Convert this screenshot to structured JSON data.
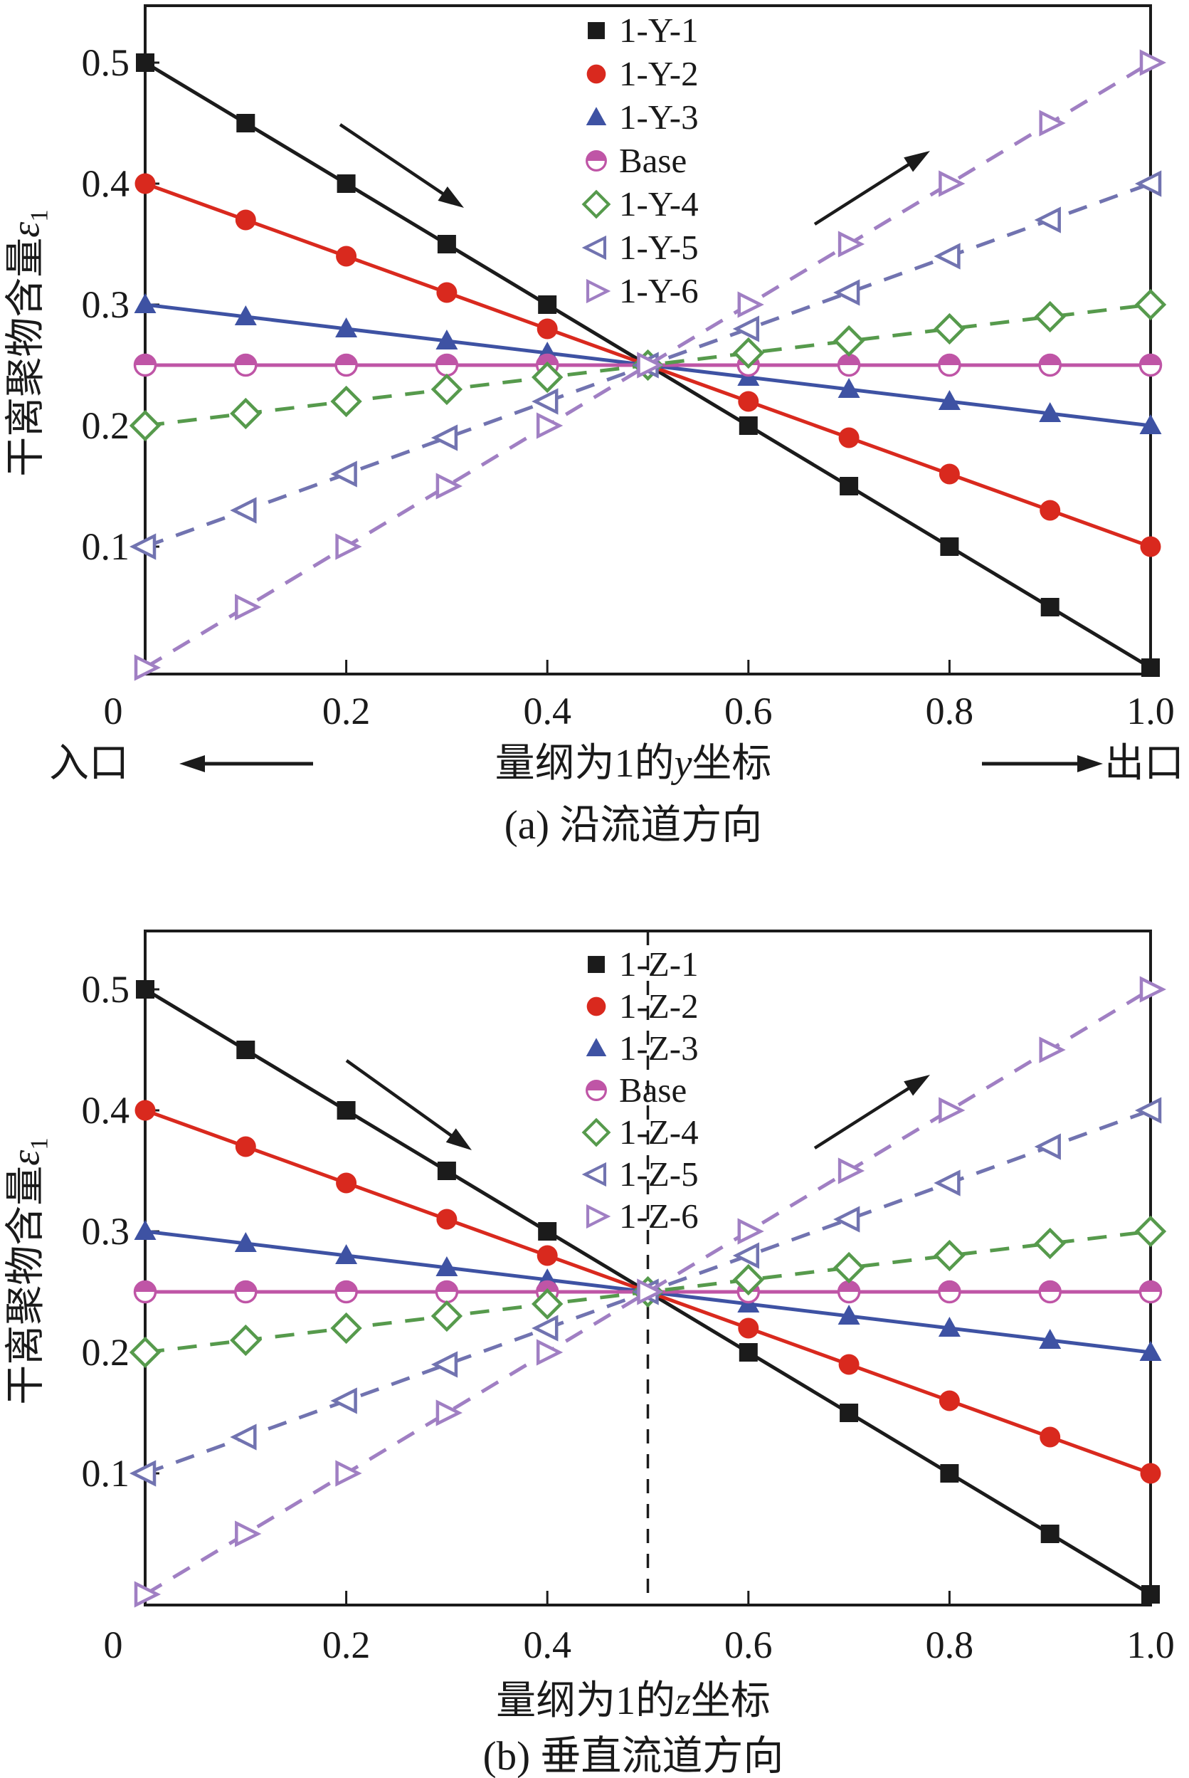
{
  "panels": [
    {
      "caption": "(a) 沿流道方向",
      "xlabel": {
        "prefix": "量纲为1的",
        "var": "y",
        "suffix": "坐标"
      },
      "ylabel": {
        "text": "干离聚物含量",
        "symbol": "ε",
        "sub": "1"
      },
      "inlet": "入口",
      "outlet": "出口",
      "xtick_labels": [
        "0",
        "0.2",
        "0.4",
        "0.6",
        "0.8",
        "1.0"
      ],
      "ytick_labels": [
        "0.5",
        "0.4",
        "0.3",
        "0.2",
        "0.1"
      ]
    },
    {
      "caption": "(b) 垂直流道方向",
      "xlabel": {
        "prefix": "量纲为1的",
        "var": "z",
        "suffix": "坐标"
      },
      "ylabel": {
        "text": "干离聚物含量",
        "symbol": "ε",
        "sub": "1"
      },
      "inlet": "",
      "outlet": "",
      "xtick_labels": [
        "0",
        "0.2",
        "0.4",
        "0.6",
        "0.8",
        "1.0"
      ],
      "ytick_labels": [
        "0.5",
        "0.4",
        "0.3",
        "0.2",
        "0.1"
      ]
    }
  ],
  "chart_data": [
    {
      "type": "line",
      "title": "(a) 沿流道方向",
      "xlabel": "量纲为1的y坐标",
      "ylabel": "干离聚物含量ε1",
      "xlim": [
        0,
        1.0
      ],
      "ylim": [
        0,
        0.55
      ],
      "xticks": [
        0,
        0.2,
        0.4,
        0.6,
        0.8,
        1.0
      ],
      "yticks": [
        0.5,
        0.4,
        0.3,
        0.2,
        0.1
      ],
      "grid": false,
      "legend_position": "top-center",
      "x": [
        0,
        0.1,
        0.2,
        0.3,
        0.4,
        0.5,
        0.6,
        0.7,
        0.8,
        0.9,
        1.0
      ],
      "series": [
        {
          "name": "1-Y-1",
          "color": "#1b1b1b",
          "line_style": "solid",
          "marker": "square-filled",
          "values": [
            0.5,
            0.45,
            0.4,
            0.35,
            0.3,
            0.25,
            0.2,
            0.15,
            0.1,
            0.05,
            0.0
          ]
        },
        {
          "name": "1-Y-2",
          "color": "#d9291e",
          "line_style": "solid",
          "marker": "circle-filled",
          "values": [
            0.4,
            0.37,
            0.34,
            0.31,
            0.28,
            0.25,
            0.22,
            0.19,
            0.16,
            0.13,
            0.1
          ]
        },
        {
          "name": "1-Y-3",
          "color": "#3e52a3",
          "line_style": "solid",
          "marker": "triangle-up-filled",
          "values": [
            0.3,
            0.29,
            0.28,
            0.27,
            0.26,
            0.25,
            0.24,
            0.23,
            0.22,
            0.21,
            0.2
          ]
        },
        {
          "name": "Base",
          "color": "#bf55a6",
          "line_style": "solid",
          "marker": "circle-half-filled",
          "values": [
            0.25,
            0.25,
            0.25,
            0.25,
            0.25,
            0.25,
            0.25,
            0.25,
            0.25,
            0.25,
            0.25
          ]
        },
        {
          "name": "1-Y-4",
          "color": "#569a4c",
          "line_style": "dashed",
          "marker": "diamond-open",
          "values": [
            0.2,
            0.21,
            0.22,
            0.23,
            0.24,
            0.25,
            0.26,
            0.27,
            0.28,
            0.29,
            0.3
          ]
        },
        {
          "name": "1-Y-5",
          "color": "#7173b0",
          "line_style": "dashed",
          "marker": "triangle-left-open",
          "values": [
            0.1,
            0.13,
            0.16,
            0.19,
            0.22,
            0.25,
            0.28,
            0.31,
            0.34,
            0.37,
            0.4
          ]
        },
        {
          "name": "1-Y-6",
          "color": "#a07fc3",
          "line_style": "dashed",
          "marker": "triangle-right-open",
          "values": [
            0.0,
            0.05,
            0.1,
            0.15,
            0.2,
            0.25,
            0.3,
            0.35,
            0.4,
            0.45,
            0.5
          ]
        }
      ],
      "annotations": {
        "decreasing_arrow": true,
        "increasing_arrow": true,
        "vline_x": null,
        "inlet": "入口",
        "outlet": "出口"
      }
    },
    {
      "type": "line",
      "title": "(b) 垂直流道方向",
      "xlabel": "量纲为1的z坐标",
      "ylabel": "干离聚物含量ε1",
      "xlim": [
        0,
        1.0
      ],
      "ylim": [
        0,
        0.55
      ],
      "xticks": [
        0,
        0.2,
        0.4,
        0.6,
        0.8,
        1.0
      ],
      "yticks": [
        0.5,
        0.4,
        0.3,
        0.2,
        0.1
      ],
      "grid": false,
      "legend_position": "top-center",
      "x": [
        0,
        0.1,
        0.2,
        0.3,
        0.4,
        0.5,
        0.6,
        0.7,
        0.8,
        0.9,
        1.0
      ],
      "series": [
        {
          "name": "1-Z-1",
          "color": "#1b1b1b",
          "line_style": "solid",
          "marker": "square-filled",
          "values": [
            0.5,
            0.45,
            0.4,
            0.35,
            0.3,
            0.25,
            0.2,
            0.15,
            0.1,
            0.05,
            0.0
          ]
        },
        {
          "name": "1-Z-2",
          "color": "#d9291e",
          "line_style": "solid",
          "marker": "circle-filled",
          "values": [
            0.4,
            0.37,
            0.34,
            0.31,
            0.28,
            0.25,
            0.22,
            0.19,
            0.16,
            0.13,
            0.1
          ]
        },
        {
          "name": "1-Z-3",
          "color": "#3e52a3",
          "line_style": "solid",
          "marker": "triangle-up-filled",
          "values": [
            0.3,
            0.29,
            0.28,
            0.27,
            0.26,
            0.25,
            0.24,
            0.23,
            0.22,
            0.21,
            0.2
          ]
        },
        {
          "name": "Base",
          "color": "#bf55a6",
          "line_style": "solid",
          "marker": "circle-half-filled",
          "values": [
            0.25,
            0.25,
            0.25,
            0.25,
            0.25,
            0.25,
            0.25,
            0.25,
            0.25,
            0.25,
            0.25
          ]
        },
        {
          "name": "1-Z-4",
          "color": "#569a4c",
          "line_style": "dashed",
          "marker": "diamond-open",
          "values": [
            0.2,
            0.21,
            0.22,
            0.23,
            0.24,
            0.25,
            0.26,
            0.27,
            0.28,
            0.29,
            0.3
          ]
        },
        {
          "name": "1-Z-5",
          "color": "#7173b0",
          "line_style": "dashed",
          "marker": "triangle-left-open",
          "values": [
            0.1,
            0.13,
            0.16,
            0.19,
            0.22,
            0.25,
            0.28,
            0.31,
            0.34,
            0.37,
            0.4
          ]
        },
        {
          "name": "1-Z-6",
          "color": "#a07fc3",
          "line_style": "dashed",
          "marker": "triangle-right-open",
          "values": [
            0.0,
            0.05,
            0.1,
            0.15,
            0.2,
            0.25,
            0.3,
            0.35,
            0.4,
            0.45,
            0.5
          ]
        }
      ],
      "annotations": {
        "decreasing_arrow": true,
        "increasing_arrow": true,
        "vline_x": 0.5,
        "inlet": "",
        "outlet": ""
      }
    }
  ]
}
